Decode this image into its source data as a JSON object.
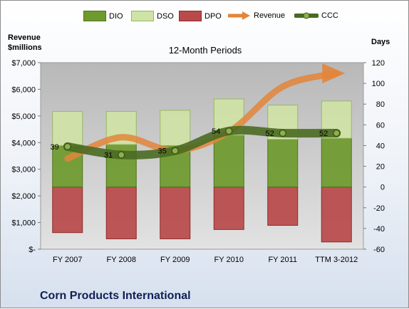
{
  "chart_data": {
    "type": "bar",
    "subtitle": "12-Month Periods",
    "company": "Corn Products International",
    "left_axis_label": "Revenue\n$millions",
    "right_axis_label": "Days",
    "categories": [
      "FY 2007",
      "FY 2008",
      "FY 2009",
      "FY 2010",
      "FY 2011",
      "TTM 3-2012"
    ],
    "left_ylim": [
      0,
      7000
    ],
    "left_ticks": [
      "$-",
      "$1,000",
      "$2,000",
      "$3,000",
      "$4,000",
      "$5,000",
      "$6,000",
      "$7,000"
    ],
    "right_ylim": [
      -60,
      120
    ],
    "right_ticks": [
      "-60",
      "-40",
      "-20",
      "0",
      "20",
      "40",
      "60",
      "80",
      "100",
      "120"
    ],
    "series": [
      {
        "name": "DIO",
        "axis": "right",
        "type": "bar",
        "color": "#6e9a2e",
        "values": [
          40,
          41,
          40,
          50,
          46,
          47
        ]
      },
      {
        "name": "DSO",
        "axis": "right",
        "type": "bar",
        "color": "#cfe3a6",
        "values": [
          33,
          32,
          34,
          35,
          33,
          36
        ]
      },
      {
        "name": "DPO",
        "axis": "right",
        "type": "bar",
        "color": "#b84a4a",
        "values": [
          -44,
          -50,
          -50,
          -41,
          -37,
          -53
        ]
      },
      {
        "name": "Revenue",
        "axis": "left",
        "type": "line",
        "color": "#e3853a",
        "values": [
          3400,
          4200,
          3700,
          4400,
          6100,
          6600
        ]
      },
      {
        "name": "CCC",
        "axis": "right",
        "type": "line",
        "color": "#4a6a22",
        "values": [
          39,
          31,
          35,
          54,
          52,
          52
        ]
      }
    ],
    "data_labels": [
      "39",
      "31",
      "35",
      "54",
      "52",
      "52"
    ],
    "grid": false,
    "legend_position": "top"
  }
}
